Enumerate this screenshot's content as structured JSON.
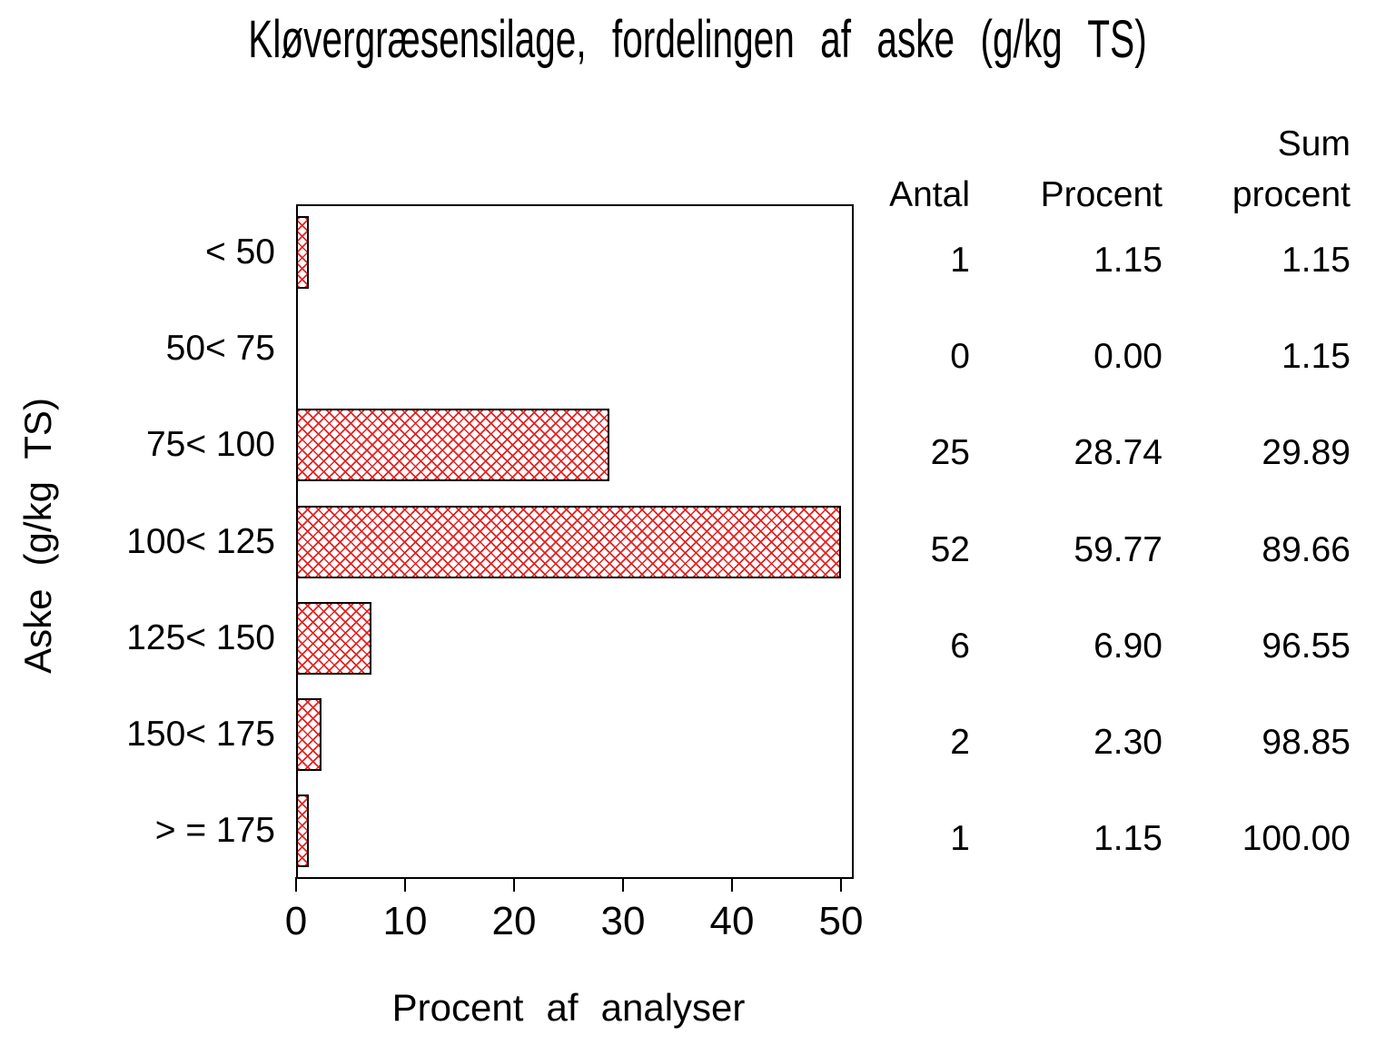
{
  "title": "Kløvergræsensilage, fordelingen af aske (g/kg TS)",
  "colors": {
    "hatch_red": "#e32222",
    "ink": "#000000",
    "background": "#ffffff"
  },
  "chart_data": {
    "type": "bar",
    "orientation": "horizontal",
    "title": "Kløvergræsensilage, fordelingen af aske (g/kg TS)",
    "categories": [
      "< 50",
      "50< 75",
      "75< 100",
      "100< 125",
      "125< 150",
      "150< 175",
      "> = 175"
    ],
    "series": [
      {
        "name": "Procent af analyser",
        "values": [
          1.15,
          0.0,
          28.74,
          59.77,
          6.9,
          2.3,
          1.15
        ]
      }
    ],
    "counts": [
      1,
      0,
      25,
      52,
      6,
      2,
      1
    ],
    "cum_percent": [
      1.15,
      1.15,
      29.89,
      89.66,
      96.55,
      98.85,
      100.0
    ],
    "xlabel": "Procent af analyser",
    "ylabel": "Aske (g/kg TS)",
    "xlim": [
      0,
      50
    ],
    "xticks": [
      0,
      10,
      20,
      30,
      40,
      50
    ],
    "grid": false,
    "legend": false,
    "bar_fill": "red diagonal crosshatch on white, black outline",
    "layout_note": "bar for category 100< 125 (59.77%) is drawn clipped at the axis maximum of 50"
  },
  "table": {
    "headers": [
      {
        "lines": [
          "Antal"
        ]
      },
      {
        "lines": [
          "Procent"
        ]
      },
      {
        "lines": [
          "Sum",
          "procent"
        ]
      }
    ],
    "rows": [
      [
        "1",
        "1.15",
        "1.15"
      ],
      [
        "0",
        "0.00",
        "1.15"
      ],
      [
        "25",
        "28.74",
        "29.89"
      ],
      [
        "52",
        "59.77",
        "89.66"
      ],
      [
        "6",
        "6.90",
        "96.55"
      ],
      [
        "2",
        "2.30",
        "98.85"
      ],
      [
        "1",
        "1.15",
        "100.00"
      ]
    ]
  }
}
